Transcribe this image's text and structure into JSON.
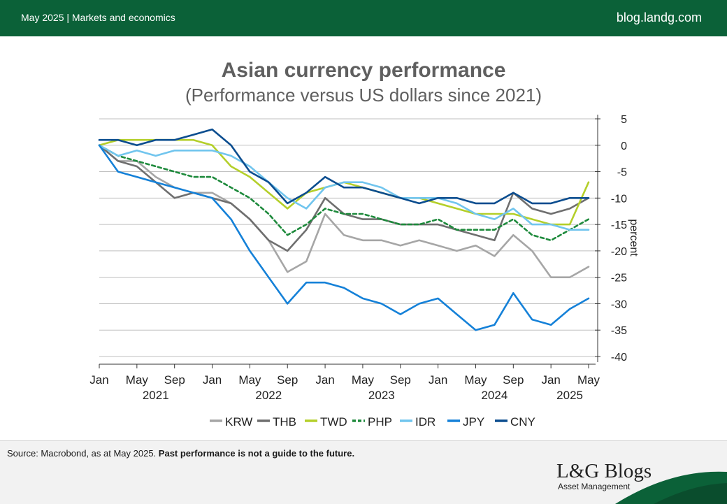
{
  "header": {
    "left_text": "May 2025 | Markets and economics",
    "right_text": "blog.landg.com"
  },
  "chart_data": {
    "type": "line",
    "title": "Asian currency performance",
    "subtitle": "(Performance versus US dollars since 2021)",
    "ylabel": "percent",
    "ylim": [
      -40,
      5
    ],
    "yticks": [
      5,
      0,
      -5,
      -10,
      -15,
      -20,
      -25,
      -30,
      -35,
      -40
    ],
    "x_range": [
      "2021-01",
      "2025-05"
    ],
    "xtick_labels": [
      {
        "month": "Jan",
        "year": "2021"
      },
      {
        "month": "May",
        "year": ""
      },
      {
        "month": "Sep",
        "year": ""
      },
      {
        "month": "Jan",
        "year": "2022"
      },
      {
        "month": "May",
        "year": ""
      },
      {
        "month": "Sep",
        "year": ""
      },
      {
        "month": "Jan",
        "year": "2023"
      },
      {
        "month": "May",
        "year": ""
      },
      {
        "month": "Sep",
        "year": ""
      },
      {
        "month": "Jan",
        "year": "2024"
      },
      {
        "month": "May",
        "year": ""
      },
      {
        "month": "Sep",
        "year": ""
      },
      {
        "month": "Jan",
        "year": "2025"
      },
      {
        "month": "May",
        "year": ""
      }
    ],
    "grid": true,
    "legend_position": "bottom",
    "x": [
      "2021-01",
      "2021-03",
      "2021-05",
      "2021-07",
      "2021-09",
      "2021-11",
      "2022-01",
      "2022-03",
      "2022-05",
      "2022-07",
      "2022-09",
      "2022-11",
      "2023-01",
      "2023-03",
      "2023-05",
      "2023-07",
      "2023-09",
      "2023-11",
      "2024-01",
      "2024-03",
      "2024-05",
      "2024-07",
      "2024-09",
      "2024-11",
      "2025-01",
      "2025-03",
      "2025-05"
    ],
    "series": [
      {
        "name": "KRW",
        "color": "#a6a6a6",
        "dashed": false,
        "values": [
          0,
          -3,
          -3,
          -6,
          -8,
          -9,
          -9,
          -11,
          -14,
          -18,
          -24,
          -22,
          -13,
          -17,
          -18,
          -18,
          -19,
          -18,
          -19,
          -20,
          -19,
          -21,
          -17,
          -20,
          -25,
          -25,
          -23
        ]
      },
      {
        "name": "THB",
        "color": "#6f6f6f",
        "dashed": false,
        "values": [
          0,
          -3,
          -4,
          -7,
          -10,
          -9,
          -10,
          -11,
          -14,
          -18,
          -20,
          -16,
          -10,
          -13,
          -14,
          -14,
          -15,
          -15,
          -15,
          -16,
          -17,
          -18,
          -9,
          -12,
          -13,
          -12,
          -10
        ]
      },
      {
        "name": "TWD",
        "color": "#b4cf2a",
        "dashed": false,
        "values": [
          0,
          1,
          1,
          1,
          1,
          1,
          0,
          -4,
          -6,
          -9,
          -12,
          -9,
          -8,
          -7,
          -8,
          -9,
          -10,
          -10,
          -11,
          -12,
          -13,
          -13,
          -13,
          -14,
          -15,
          -15,
          -7
        ]
      },
      {
        "name": "PHP",
        "color": "#1e8a3c",
        "dashed": true,
        "values": [
          0,
          -2,
          -3,
          -4,
          -5,
          -6,
          -6,
          -8,
          -10,
          -13,
          -17,
          -15,
          -12,
          -13,
          -13,
          -14,
          -15,
          -15,
          -14,
          -16,
          -16,
          -16,
          -14,
          -17,
          -18,
          -16,
          -14
        ]
      },
      {
        "name": "IDR",
        "color": "#71c5ee",
        "dashed": false,
        "values": [
          0,
          -2,
          -1,
          -2,
          -1,
          -1,
          -1,
          -2,
          -4,
          -7,
          -10,
          -12,
          -8,
          -7,
          -7,
          -8,
          -10,
          -10,
          -10,
          -11,
          -13,
          -14,
          -12,
          -15,
          -15,
          -16,
          -16
        ]
      },
      {
        "name": "JPY",
        "color": "#1581d8",
        "dashed": false,
        "values": [
          0,
          -5,
          -6,
          -7,
          -8,
          -9,
          -10,
          -14,
          -20,
          -25,
          -30,
          -26,
          -26,
          -27,
          -29,
          -30,
          -32,
          -30,
          -29,
          -32,
          -35,
          -34,
          -28,
          -33,
          -34,
          -31,
          -29
        ]
      },
      {
        "name": "CNY",
        "color": "#0b4d8f",
        "dashed": false,
        "values": [
          1,
          1,
          0,
          1,
          1,
          2,
          3,
          0,
          -5,
          -7,
          -11,
          -9,
          -6,
          -8,
          -8,
          -9,
          -10,
          -11,
          -10,
          -10,
          -11,
          -11,
          -9,
          -11,
          -11,
          -10,
          -10
        ]
      }
    ]
  },
  "footer": {
    "source_text": "Source: Macrobond, as at May 2025. ",
    "disclaimer": "Past performance is not a guide to the future.",
    "brand_name": "L&G Blogs",
    "brand_sub": "Asset Management"
  },
  "colors": {
    "header_green": "#0b6138",
    "footer_gray": "#f2f2f2",
    "grid": "#bfbfbf"
  }
}
